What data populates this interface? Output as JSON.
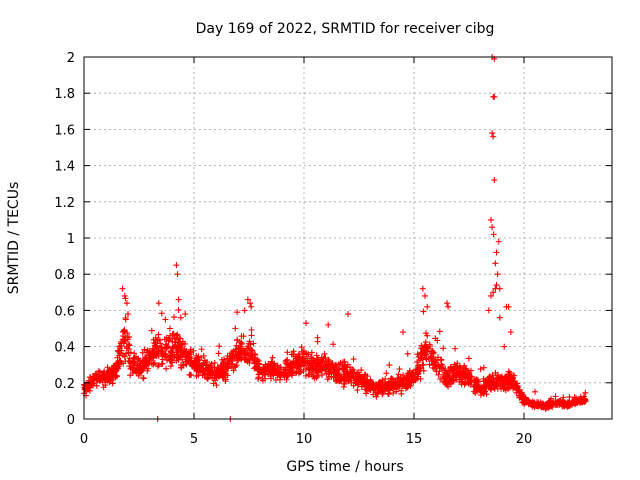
{
  "chart_data": {
    "type": "scatter",
    "title": "Day 169 of 2022, SRMTID for receiver cibg",
    "xlabel": "GPS time / hours",
    "ylabel": "SRMTID / TECUs",
    "xlim": [
      0,
      24
    ],
    "ylim": [
      0,
      2
    ],
    "x_ticks": [
      "0",
      "5",
      "10",
      "15",
      "20"
    ],
    "y_ticks": [
      "0",
      "0.2",
      "0.4",
      "0.6",
      "0.8",
      "1",
      "1.2",
      "1.4",
      "1.6",
      "1.8",
      "2"
    ],
    "grid": true,
    "marker": "+",
    "series_color": "#ff0000",
    "profile": [
      [
        0.0,
        0.16,
        0.06
      ],
      [
        0.5,
        0.22,
        0.06
      ],
      [
        1.0,
        0.23,
        0.06
      ],
      [
        1.5,
        0.28,
        0.08
      ],
      [
        1.8,
        0.45,
        0.2
      ],
      [
        2.2,
        0.3,
        0.1
      ],
      [
        2.5,
        0.28,
        0.08
      ],
      [
        3.0,
        0.34,
        0.12
      ],
      [
        3.5,
        0.38,
        0.14
      ],
      [
        4.0,
        0.4,
        0.15
      ],
      [
        4.5,
        0.36,
        0.12
      ],
      [
        5.0,
        0.3,
        0.1
      ],
      [
        5.5,
        0.28,
        0.08
      ],
      [
        6.0,
        0.24,
        0.08
      ],
      [
        6.5,
        0.28,
        0.1
      ],
      [
        7.0,
        0.36,
        0.12
      ],
      [
        7.5,
        0.38,
        0.12
      ],
      [
        8.0,
        0.26,
        0.08
      ],
      [
        8.5,
        0.28,
        0.08
      ],
      [
        9.0,
        0.25,
        0.08
      ],
      [
        9.5,
        0.3,
        0.1
      ],
      [
        10.0,
        0.32,
        0.1
      ],
      [
        10.5,
        0.28,
        0.09
      ],
      [
        11.0,
        0.3,
        0.1
      ],
      [
        11.5,
        0.25,
        0.08
      ],
      [
        12.0,
        0.26,
        0.1
      ],
      [
        12.5,
        0.22,
        0.07
      ],
      [
        13.0,
        0.18,
        0.06
      ],
      [
        13.5,
        0.17,
        0.06
      ],
      [
        14.0,
        0.18,
        0.06
      ],
      [
        14.5,
        0.2,
        0.07
      ],
      [
        15.0,
        0.22,
        0.07
      ],
      [
        15.5,
        0.38,
        0.14
      ],
      [
        16.0,
        0.32,
        0.1
      ],
      [
        16.5,
        0.22,
        0.08
      ],
      [
        17.0,
        0.26,
        0.08
      ],
      [
        17.5,
        0.22,
        0.07
      ],
      [
        18.0,
        0.16,
        0.06
      ],
      [
        18.5,
        0.2,
        0.08
      ],
      [
        19.0,
        0.2,
        0.07
      ],
      [
        19.5,
        0.22,
        0.08
      ],
      [
        20.0,
        0.1,
        0.03
      ],
      [
        20.5,
        0.08,
        0.02
      ],
      [
        21.0,
        0.07,
        0.02
      ],
      [
        21.5,
        0.09,
        0.02
      ],
      [
        22.0,
        0.08,
        0.02
      ],
      [
        22.5,
        0.1,
        0.02
      ],
      [
        22.8,
        0.1,
        0.02
      ]
    ],
    "points": [
      [
        1.75,
        0.72
      ],
      [
        1.85,
        0.68
      ],
      [
        1.95,
        0.64
      ],
      [
        2.0,
        0.58
      ],
      [
        1.9,
        0.55
      ],
      [
        3.4,
        0.64
      ],
      [
        3.7,
        0.55
      ],
      [
        4.2,
        0.85
      ],
      [
        4.25,
        0.8
      ],
      [
        4.3,
        0.66
      ],
      [
        4.4,
        0.56
      ],
      [
        4.6,
        0.58
      ],
      [
        7.3,
        0.6
      ],
      [
        7.45,
        0.66
      ],
      [
        7.55,
        0.64
      ],
      [
        7.6,
        0.62
      ],
      [
        12.0,
        0.58
      ],
      [
        15.4,
        0.72
      ],
      [
        15.5,
        0.68
      ],
      [
        15.6,
        0.62
      ],
      [
        16.5,
        0.64
      ],
      [
        16.55,
        0.62
      ],
      [
        14.5,
        0.48
      ],
      [
        11.1,
        0.52
      ],
      [
        18.55,
        2.0
      ],
      [
        18.65,
        1.99
      ],
      [
        18.6,
        1.78
      ],
      [
        18.65,
        1.78
      ],
      [
        18.55,
        1.58
      ],
      [
        18.6,
        1.56
      ],
      [
        18.65,
        1.32
      ],
      [
        18.5,
        1.1
      ],
      [
        18.55,
        1.06
      ],
      [
        18.62,
        1.02
      ],
      [
        18.85,
        0.98
      ],
      [
        18.75,
        0.92
      ],
      [
        18.7,
        0.86
      ],
      [
        18.8,
        0.8
      ],
      [
        18.75,
        0.74
      ],
      [
        18.7,
        0.72
      ],
      [
        18.9,
        0.72
      ],
      [
        18.6,
        0.7
      ],
      [
        18.5,
        0.68
      ],
      [
        19.2,
        0.62
      ],
      [
        19.3,
        0.62
      ],
      [
        18.4,
        0.6
      ],
      [
        18.9,
        0.56
      ],
      [
        19.4,
        0.48
      ],
      [
        19.1,
        0.4
      ],
      [
        20.5,
        0.15
      ],
      [
        22.3,
        0.12
      ],
      [
        3.35,
        0.0
      ],
      [
        6.65,
        0.0
      ]
    ],
    "samples": 2200
  }
}
